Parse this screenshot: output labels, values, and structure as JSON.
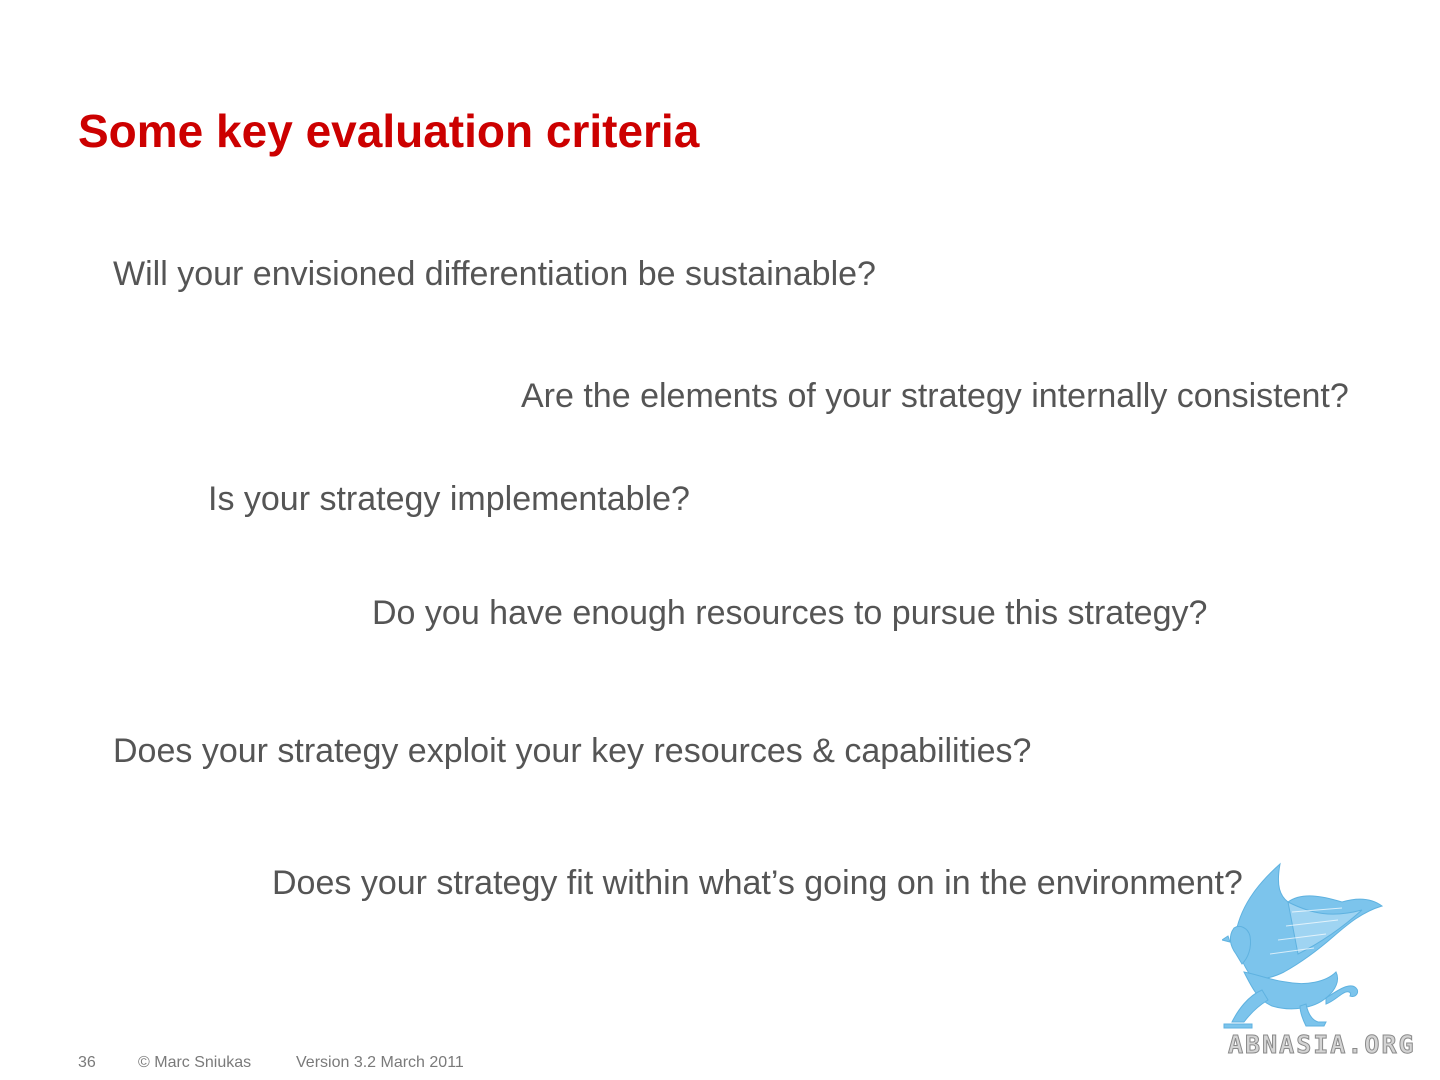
{
  "slide": {
    "title": "Some key evaluation criteria",
    "questions": [
      "Will your envisioned differentiation be sustainable?",
      "Are the elements of your strategy internally consistent?",
      "Is your strategy implementable?",
      "Do you have enough resources to pursue this strategy?",
      "Does your strategy exploit your key resources & capabilities?",
      "Does your strategy fit within what’s going on in the environment?"
    ]
  },
  "footer": {
    "page_number": "36",
    "copyright": "© Marc Sniukas",
    "version": "Version 3.2 March 2011"
  },
  "watermark": {
    "text": "ABNASIA.ORG",
    "icon": "griffin-logo-icon",
    "color": "#7cc4ec"
  },
  "colors": {
    "title": "#cc0000",
    "body_text": "#555555",
    "footer_text": "#7a7a7a"
  }
}
